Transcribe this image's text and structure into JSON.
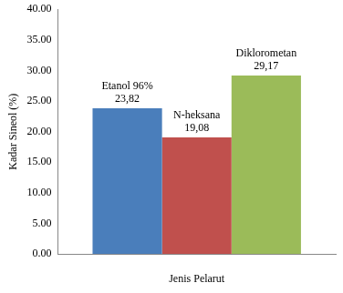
{
  "chart_data": {
    "type": "bar",
    "y_label": "Kadar Sineol (%)",
    "x_label": "Jenis Pelarut",
    "categories": [
      null
    ],
    "series": [
      {
        "name": "Etanol 96%",
        "color": "#4a7ebb",
        "values": [
          23.82
        ],
        "value_labels": [
          "23,82"
        ]
      },
      {
        "name": "N-heksana",
        "color": "#c0504d",
        "values": [
          19.08
        ],
        "value_labels": [
          "19,08"
        ]
      },
      {
        "name": "Diklorometan",
        "color": "#9bbb59",
        "values": [
          29.17
        ],
        "value_labels": [
          "29,17"
        ]
      }
    ],
    "ylim": [
      0,
      40
    ],
    "yticks": [
      {
        "value": 0,
        "label": "0.00"
      },
      {
        "value": 5,
        "label": "5.00"
      },
      {
        "value": 10,
        "label": "10.00"
      },
      {
        "value": 15,
        "label": "15.00"
      },
      {
        "value": 20,
        "label": "20.00"
      },
      {
        "value": 25,
        "label": "25.00"
      },
      {
        "value": 30,
        "label": "30.00"
      },
      {
        "value": 35,
        "label": "35.00"
      },
      {
        "value": 40,
        "label": "40.00"
      }
    ],
    "grid": false,
    "data_labels": true
  }
}
